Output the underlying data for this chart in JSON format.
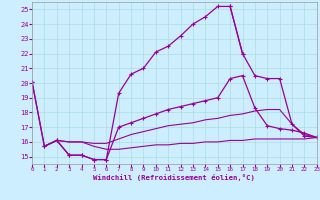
{
  "background_color": "#cceeff",
  "grid_color": "#aadddd",
  "line_color": "#990099",
  "xlabel": "Windchill (Refroidissement éolien,°C)",
  "xlim": [
    0,
    23
  ],
  "ylim": [
    14.5,
    25.5
  ],
  "yticks": [
    15,
    16,
    17,
    18,
    19,
    20,
    21,
    22,
    23,
    24,
    25
  ],
  "xticks": [
    0,
    1,
    2,
    3,
    4,
    5,
    6,
    7,
    8,
    9,
    10,
    11,
    12,
    13,
    14,
    15,
    16,
    17,
    18,
    19,
    20,
    21,
    22,
    23
  ],
  "line1_x": [
    0,
    1,
    2,
    3,
    4,
    5,
    6,
    7,
    8,
    9,
    10,
    11,
    12,
    13,
    14,
    15,
    16,
    17
  ],
  "line1_y": [
    20.1,
    15.7,
    16.1,
    15.1,
    15.1,
    14.8,
    14.8,
    19.3,
    20.6,
    21.0,
    22.1,
    22.5,
    23.2,
    24.0,
    24.5,
    25.2,
    25.2,
    22.0
  ],
  "line1b_x": [
    16,
    17,
    18,
    19,
    20,
    21,
    22,
    23
  ],
  "line1b_y": [
    25.2,
    22.0,
    20.5,
    20.3,
    20.3,
    17.2,
    16.4,
    16.3
  ],
  "line2_x": [
    0,
    1,
    2,
    3,
    4,
    5,
    6,
    7,
    8,
    9,
    10,
    11,
    12,
    13,
    14,
    15,
    16,
    17,
    18,
    19,
    20,
    21,
    22,
    23
  ],
  "line2_y": [
    20.1,
    15.7,
    16.1,
    15.1,
    15.1,
    14.8,
    14.8,
    17.0,
    17.3,
    17.6,
    17.9,
    18.2,
    18.4,
    18.6,
    18.8,
    19.0,
    20.3,
    20.5,
    18.3,
    17.1,
    16.9,
    16.8,
    16.6,
    16.3
  ],
  "line3_x": [
    1,
    2,
    3,
    4,
    5,
    6,
    7,
    8,
    9,
    10,
    11,
    12,
    13,
    14,
    15,
    16,
    17,
    18,
    19,
    20,
    21,
    22,
    23
  ],
  "line3_y": [
    15.7,
    16.1,
    16.0,
    16.0,
    15.9,
    15.9,
    16.2,
    16.5,
    16.7,
    16.9,
    17.1,
    17.2,
    17.3,
    17.5,
    17.6,
    17.8,
    17.9,
    18.1,
    18.2,
    18.2,
    17.2,
    16.5,
    16.3
  ],
  "line4_x": [
    1,
    2,
    3,
    4,
    5,
    6,
    7,
    8,
    9,
    10,
    11,
    12,
    13,
    14,
    15,
    16,
    17,
    18,
    19,
    20,
    21,
    22,
    23
  ],
  "line4_y": [
    15.7,
    16.1,
    16.0,
    16.0,
    15.7,
    15.5,
    15.5,
    15.6,
    15.7,
    15.8,
    15.8,
    15.9,
    15.9,
    16.0,
    16.0,
    16.1,
    16.1,
    16.2,
    16.2,
    16.2,
    16.2,
    16.2,
    16.3
  ]
}
